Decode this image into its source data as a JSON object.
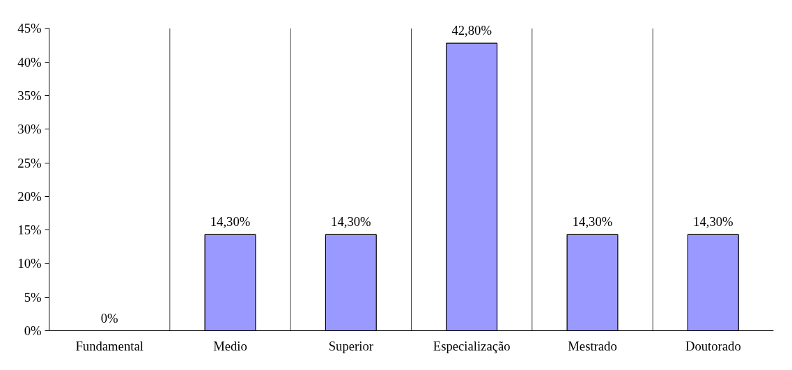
{
  "chart_data": {
    "type": "bar",
    "categories": [
      "Fundamental",
      "Medio",
      "Superior",
      "Especialização",
      "Mestrado",
      "Doutorado"
    ],
    "values": [
      0,
      14.3,
      14.3,
      42.8,
      14.3,
      14.3
    ],
    "value_labels": [
      "0%",
      "14,30%",
      "14,30%",
      "42,80%",
      "14,30%",
      "14,30%"
    ],
    "color": "#9999ff",
    "ylim": [
      0,
      45
    ],
    "yticks": [
      {
        "value": 0,
        "label": "0%"
      },
      {
        "value": 5,
        "label": "5%"
      },
      {
        "value": 10,
        "label": "10%"
      },
      {
        "value": 15,
        "label": "15%"
      },
      {
        "value": 20,
        "label": "20%"
      },
      {
        "value": 25,
        "label": "25%"
      },
      {
        "value": 30,
        "label": "30%"
      },
      {
        "value": 35,
        "label": "35%"
      },
      {
        "value": 40,
        "label": "40%"
      },
      {
        "value": 45,
        "label": "45%"
      }
    ],
    "grid": "x"
  }
}
